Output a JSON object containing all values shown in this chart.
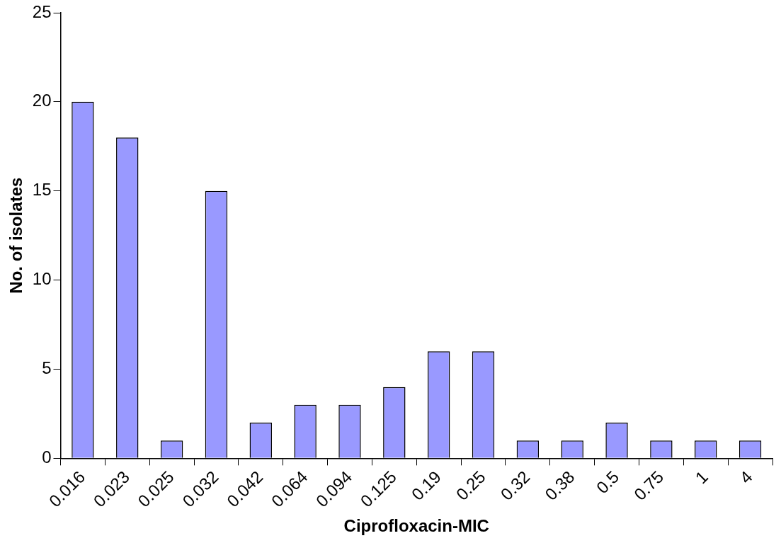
{
  "chart_data": {
    "type": "bar",
    "xlabel": "Ciprofloxacin-MIC",
    "ylabel": "No. of isolates",
    "categories": [
      "0.016",
      "0.023",
      "0.025",
      "0.032",
      "0.042",
      "0.064",
      "0.094",
      "0.125",
      "0.19",
      "0.25",
      "0.32",
      "0.38",
      "0.5",
      "0.75",
      "1",
      "4"
    ],
    "values": [
      20,
      18,
      1,
      15,
      2,
      3,
      3,
      4,
      6,
      6,
      1,
      1,
      2,
      1,
      1,
      1
    ],
    "color": "#9999ff",
    "ylim": [
      0,
      25
    ],
    "yticks": [
      0,
      5,
      10,
      15,
      20,
      25
    ],
    "grid": false,
    "legend": false
  }
}
